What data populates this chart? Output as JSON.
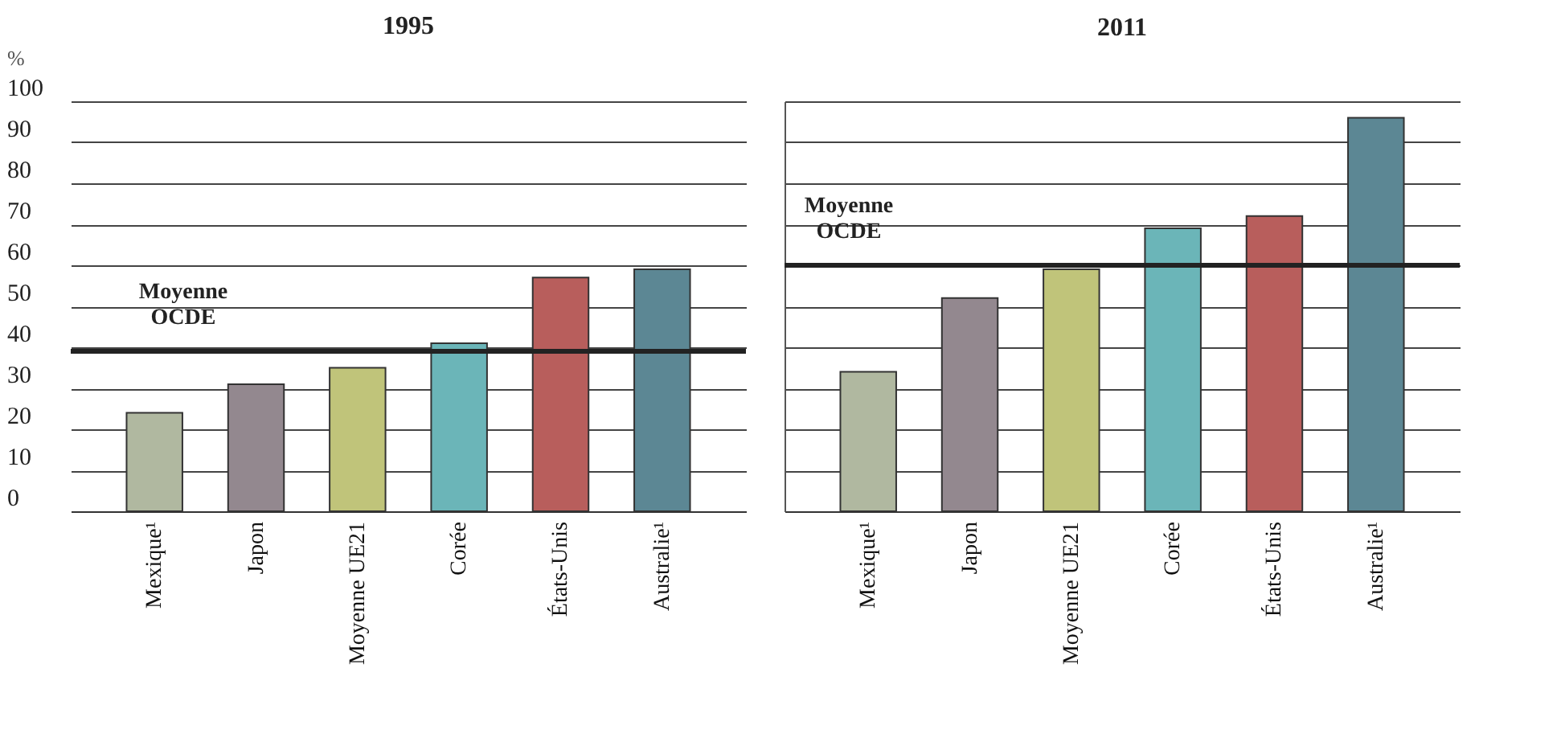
{
  "chart_data": [
    {
      "type": "bar",
      "title": "1995",
      "ylabel": "%",
      "categories": [
        "Mexique¹",
        "Japon",
        "Moyenne UE21",
        "Corée",
        "États-Unis",
        "Australie¹"
      ],
      "values": [
        24,
        31,
        35,
        41,
        57,
        59
      ],
      "colors": [
        "#b0b8a0",
        "#93888f",
        "#c0c47a",
        "#6bb5b8",
        "#b85e5c",
        "#5c8794"
      ],
      "ylim": [
        0,
        100
      ],
      "yticks": [
        0,
        10,
        20,
        30,
        40,
        50,
        60,
        70,
        80,
        90,
        100
      ],
      "grid": "y",
      "ref_lines": [
        {
          "axis": "y",
          "value": 39,
          "label": "Moyenne OCDE"
        }
      ]
    },
    {
      "type": "bar",
      "title": "2011",
      "categories": [
        "Mexique¹",
        "Japon",
        "Moyenne UE21",
        "Corée",
        "États-Unis",
        "Australie¹"
      ],
      "values": [
        34,
        52,
        59,
        69,
        72,
        96
      ],
      "colors": [
        "#b0b8a0",
        "#93888f",
        "#c0c47a",
        "#6bb5b8",
        "#b85e5c",
        "#5c8794"
      ],
      "ylim": [
        0,
        100
      ],
      "yticks": [
        0,
        10,
        20,
        30,
        40,
        50,
        60,
        70,
        80,
        90,
        100
      ],
      "grid": "y",
      "tick_labels": "x",
      "ref_lines": [
        {
          "axis": "y",
          "value": 60,
          "label": "Moyenne OCDE"
        }
      ]
    }
  ]
}
